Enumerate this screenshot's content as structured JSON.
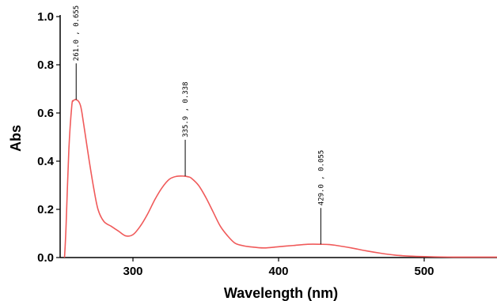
{
  "chart_data": {
    "type": "line",
    "xlabel": "Wavelength (nm)",
    "ylabel": "Abs",
    "xlim": [
      250,
      550
    ],
    "ylim": [
      0,
      1.0
    ],
    "x_ticks": [
      300,
      400,
      500
    ],
    "x_tick_labels": [
      "300",
      "400",
      "500"
    ],
    "y_ticks": [
      0,
      0.2,
      0.4,
      0.6,
      0.8,
      1.0
    ],
    "y_tick_labels": [
      "0.0",
      "0.2",
      "0.4",
      "0.6",
      "0.8",
      "1.0"
    ],
    "grid": false,
    "line_color": "#f05a5a",
    "series": [
      {
        "x": [
          253,
          254,
          256,
          258,
          259,
          260,
          261,
          262,
          263,
          264,
          265,
          267,
          270,
          273,
          276,
          280,
          285,
          290,
          295,
          300,
          305,
          310,
          315,
          320,
          325,
          330,
          335,
          338,
          340,
          345,
          350,
          355,
          360,
          365,
          370,
          375,
          380,
          390,
          400,
          410,
          420,
          429,
          435,
          440,
          450,
          460,
          470,
          480,
          490,
          500,
          520,
          550
        ],
        "y": [
          0.0,
          0.12,
          0.45,
          0.63,
          0.65,
          0.655,
          0.655,
          0.652,
          0.645,
          0.63,
          0.6,
          0.52,
          0.4,
          0.29,
          0.2,
          0.15,
          0.13,
          0.11,
          0.09,
          0.095,
          0.13,
          0.18,
          0.24,
          0.29,
          0.325,
          0.337,
          0.338,
          0.335,
          0.33,
          0.3,
          0.25,
          0.19,
          0.13,
          0.09,
          0.06,
          0.05,
          0.045,
          0.04,
          0.045,
          0.05,
          0.055,
          0.055,
          0.054,
          0.05,
          0.04,
          0.028,
          0.018,
          0.01,
          0.006,
          0.004,
          0.002,
          0.002
        ]
      }
    ],
    "peak_annotations": [
      {
        "x": 261.0,
        "y": 0.655,
        "label": "261.0 , 0.655"
      },
      {
        "x": 335.9,
        "y": 0.338,
        "label": "335.9 , 0.338"
      },
      {
        "x": 429.0,
        "y": 0.055,
        "label": "429.0 , 0.055"
      }
    ]
  }
}
